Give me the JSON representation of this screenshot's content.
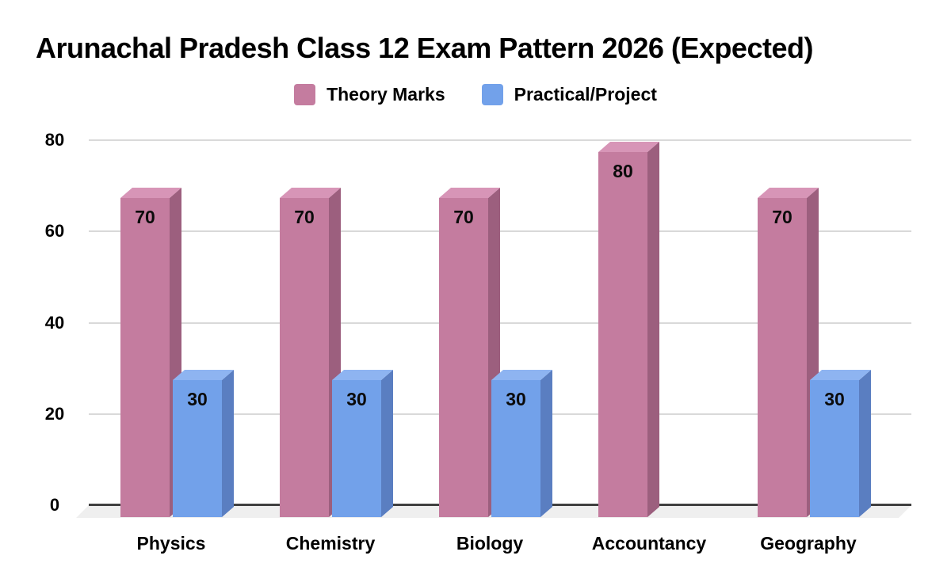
{
  "title": "Arunachal Pradesh Class 12 Exam Pattern 2026 (Expected)",
  "chart_data": {
    "type": "bar",
    "style": "3d-column",
    "title": "Arunachal Pradesh Class 12 Exam Pattern 2026 (Expected)",
    "categories": [
      "Physics",
      "Chemistry",
      "Biology",
      "Accountancy",
      "Geography"
    ],
    "series": [
      {
        "name": "Theory Marks",
        "values": [
          70,
          70,
          70,
          80,
          70
        ],
        "color": "#c47c9f",
        "color_top": "#d795b7",
        "color_side": "#9c5f7e"
      },
      {
        "name": "Practical/Project",
        "values": [
          30,
          30,
          30,
          null,
          30
        ],
        "color": "#72a1ea",
        "color_top": "#8eb4f1",
        "color_side": "#5a7ec1"
      }
    ],
    "bar_labels_shown": true,
    "xlabel": "",
    "ylabel": "",
    "yticks": [
      0,
      20,
      40,
      60,
      80
    ],
    "ylim": [
      0,
      80
    ],
    "grid": true,
    "legend_position": "top"
  },
  "colors": {
    "background": "#ffffff",
    "grid": "#d9d9d9",
    "axis": "#404040",
    "floor": "#efefef",
    "text": "#000000"
  }
}
